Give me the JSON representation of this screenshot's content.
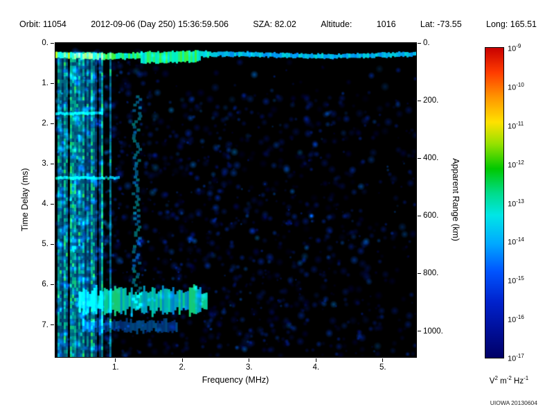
{
  "header": {
    "segments": [
      "Orbit: 11054",
      "2012-09-06 (Day 250) 15:36:59.506",
      "SZA: 82.02",
      "Altitude:",
      "1016",
      "Lat: -73.55",
      "Long: 165.51"
    ]
  },
  "axes": {
    "xlabel": "Frequency (MHz)",
    "ylabel_left": "Time Delay (ms)",
    "ylabel_right": "Apparent Range (km)"
  },
  "colorbar": {
    "exponents": [
      -9,
      -10,
      -11,
      -12,
      -13,
      -14,
      -15,
      -16,
      -17
    ],
    "units": "V^2 m^-2 Hz^-1",
    "stops": [
      "#c80000 0%",
      "#ff3c00 8%",
      "#ff9600 16%",
      "#ffe100 24%",
      "#96e100 31%",
      "#00c800 39%",
      "#00dc8c 47%",
      "#00e6e6 54%",
      "#00aaff 63%",
      "#0055ff 72%",
      "#0022cc 82%",
      "#000f99 91%",
      "#000066 100%"
    ]
  },
  "watermark": "UIOWA 20130604",
  "chart_data": {
    "type": "heatmap",
    "title": "Radar sounder ionogram spectrogram",
    "xlabel": "Frequency (MHz)",
    "ylabel": "Time Delay (ms)",
    "x_range": [
      0.1,
      5.5
    ],
    "y_range": [
      0,
      7.8
    ],
    "x_ticks": {
      "values": [
        1,
        2,
        3,
        4,
        5
      ],
      "labels": [
        "1.",
        "2.",
        "3.",
        "4.",
        "5."
      ]
    },
    "y_ticks": {
      "values": [
        0,
        1,
        2,
        3,
        4,
        5,
        6,
        7
      ],
      "labels": [
        "0.",
        "1.",
        "2.",
        "3.",
        "4.",
        "5.",
        "6.",
        "7."
      ]
    },
    "right_axis": {
      "label": "Apparent Range (km)",
      "max": 1090,
      "values": [
        0,
        200,
        400,
        600,
        800,
        1000
      ],
      "labels": [
        "0.",
        "200.",
        "400.",
        "600.",
        "800.",
        "1000."
      ]
    },
    "z_scale": {
      "min_exp": -17,
      "max_exp": -9,
      "units": "V^2 m^-2 Hz^-1"
    },
    "grid": false,
    "legend": "none",
    "palette": [
      [
        0,
        0,
        0,
        64
      ],
      [
        0.2,
        0,
        48,
        192
      ],
      [
        0.45,
        0,
        160,
        255
      ],
      [
        0.7,
        0,
        255,
        208
      ],
      [
        0.9,
        64,
        255,
        64
      ],
      [
        1,
        192,
        255,
        32
      ]
    ],
    "features": [
      {
        "type": "stripes",
        "f": [
          0.1,
          1.0
        ],
        "strong_f_max": 0.78
      },
      {
        "type": "surface_band",
        "f": [
          0.1,
          5.5
        ],
        "td": 0.3,
        "thick_f": [
          1.35,
          2.25
        ]
      },
      {
        "type": "v_streak",
        "f": [
          1.24,
          1.4
        ],
        "td": [
          1.3,
          6.6
        ]
      },
      {
        "type": "h_band",
        "f": [
          0.45,
          2.35
        ],
        "td": [
          6.15,
          6.65
        ],
        "i": 0.8
      },
      {
        "type": "h_band",
        "f": [
          0.5,
          1.9
        ],
        "td": [
          6.9,
          7.15
        ],
        "i": 0.45
      },
      {
        "type": "h_line",
        "f": [
          0.1,
          0.8
        ],
        "td": 1.75
      },
      {
        "type": "h_line",
        "f": [
          0.1,
          1.05
        ],
        "td": 3.35
      },
      {
        "type": "speckle",
        "count": 3000
      }
    ]
  }
}
